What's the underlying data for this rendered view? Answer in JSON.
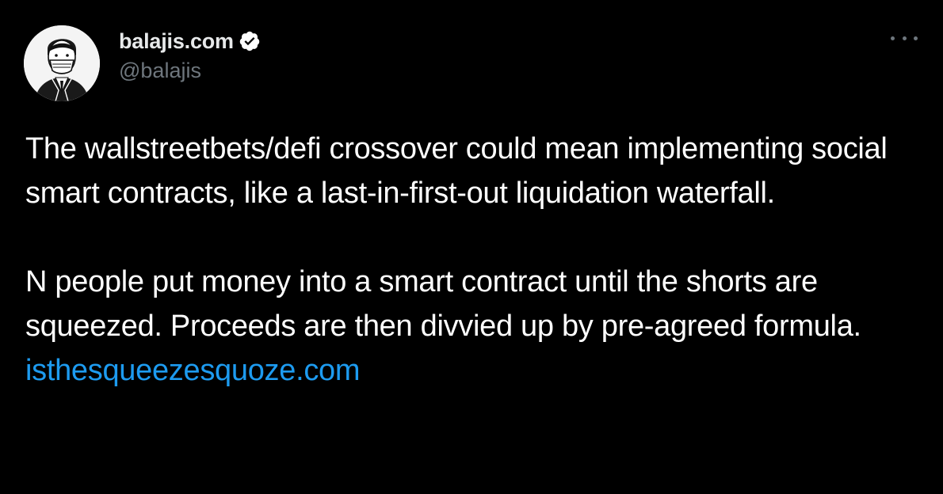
{
  "author": {
    "display_name": "balajis.com",
    "handle": "@balajis",
    "verified": true
  },
  "menu": {
    "more_icon": "more-horizontal-icon"
  },
  "tweet": {
    "paragraph_1": "The wallstreetbets/defi crossover could mean implementing social smart contracts, like a last-in-first-out liquidation waterfall.",
    "paragraph_2": "N people put money into a smart contract until the shorts are squeezed. Proceeds are then divvied up by pre-agreed formula.",
    "link": "isthesqueezesquoze.com"
  },
  "colors": {
    "background": "#000000",
    "text": "#ffffff",
    "secondary_text": "#6e767d",
    "link": "#1d9bf0"
  }
}
